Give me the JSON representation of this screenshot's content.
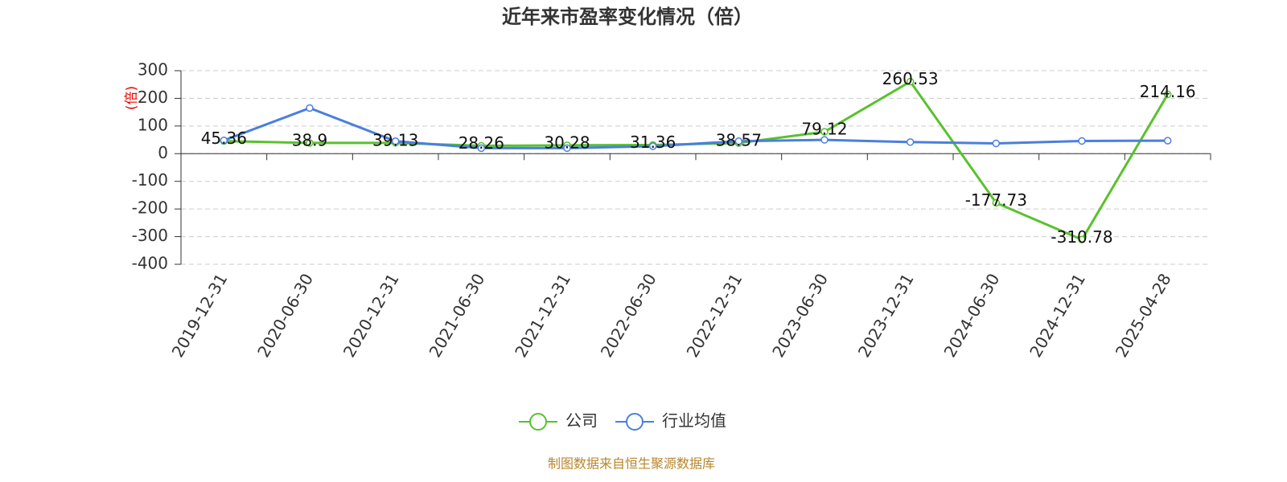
{
  "chart_data": {
    "type": "line",
    "title": "近年来市盈率变化情况（倍）",
    "y_label": "(倍)",
    "categories": [
      "2019-12-31",
      "2020-06-30",
      "2020-12-31",
      "2021-06-30",
      "2021-12-31",
      "2022-06-30",
      "2022-12-31",
      "2023-06-30",
      "2023-12-31",
      "2024-06-30",
      "2024-12-31",
      "2025-04-28"
    ],
    "series": [
      {
        "name": "公司",
        "color": "#58c22d",
        "show_labels": true,
        "values": [
          45.36,
          38.9,
          39.13,
          28.26,
          30.28,
          31.36,
          38.57,
          79.12,
          260.53,
          -177.73,
          -310.78,
          214.16
        ]
      },
      {
        "name": "行业均值",
        "color": "#4a7fdd",
        "show_labels": false,
        "values": [
          48,
          165,
          45,
          20,
          20,
          27,
          45,
          50,
          42,
          37,
          46,
          47
        ]
      }
    ],
    "ylim": [
      -400,
      300
    ],
    "yticks": [
      -400,
      -300,
      -200,
      -100,
      0,
      100,
      200,
      300
    ],
    "grid": true,
    "legend": "bottom",
    "footer": "制图数据来自恒生聚源数据库"
  }
}
